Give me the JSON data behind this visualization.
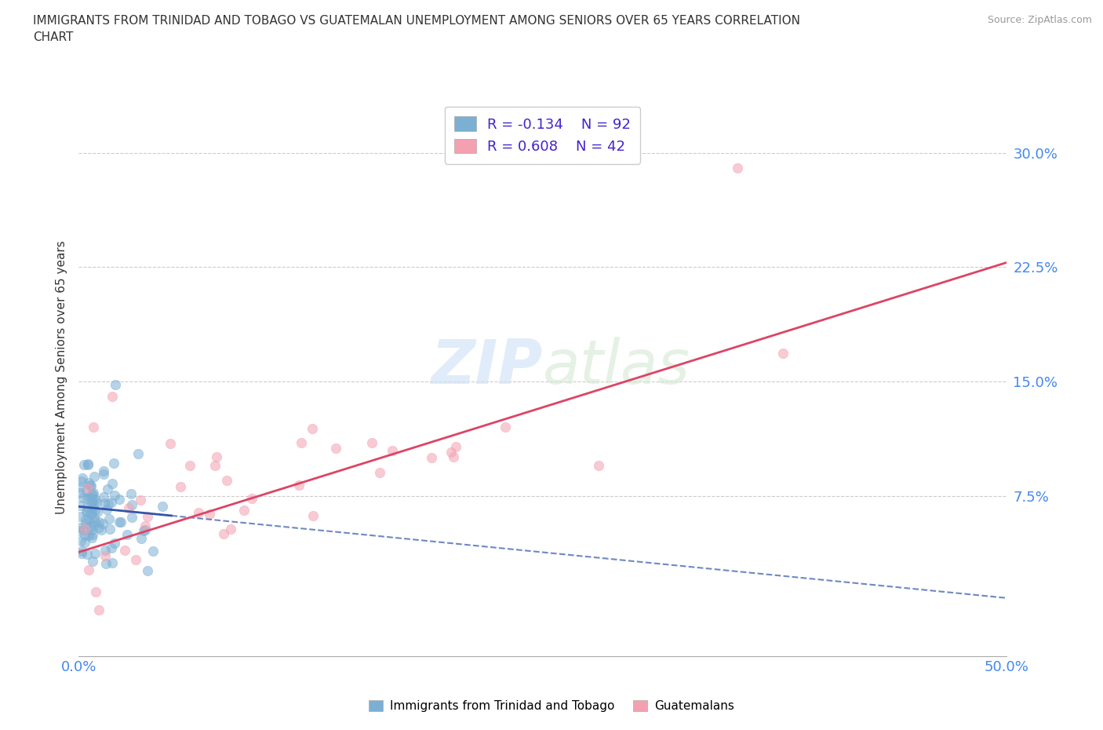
{
  "title": "IMMIGRANTS FROM TRINIDAD AND TOBAGO VS GUATEMALAN UNEMPLOYMENT AMONG SENIORS OVER 65 YEARS CORRELATION\nCHART",
  "source": "Source: ZipAtlas.com",
  "ylabel": "Unemployment Among Seniors over 65 years",
  "xlim": [
    0.0,
    0.5
  ],
  "ylim": [
    -0.03,
    0.335
  ],
  "ytick_positions": [
    0.075,
    0.15,
    0.225,
    0.3
  ],
  "ytick_labels": [
    "7.5%",
    "15.0%",
    "22.5%",
    "30.0%"
  ],
  "grid_color": "#cccccc",
  "background_color": "#ffffff",
  "watermark_zip": "ZIP",
  "watermark_atlas": "atlas",
  "legend_r1": "R = -0.134",
  "legend_n1": "N = 92",
  "legend_r2": "R = 0.608",
  "legend_n2": "N = 42",
  "color_blue": "#7bafd4",
  "color_pink": "#f4a0b0",
  "trendline_blue_color": "#3355aa",
  "trendline_pink_color": "#dd4466",
  "blue_intercept": 0.068,
  "blue_slope": -0.12,
  "pink_intercept": 0.038,
  "pink_slope": 0.38,
  "bottom_legend_blue": "Immigrants from Trinidad and Tobago",
  "bottom_legend_pink": "Guatemalans"
}
